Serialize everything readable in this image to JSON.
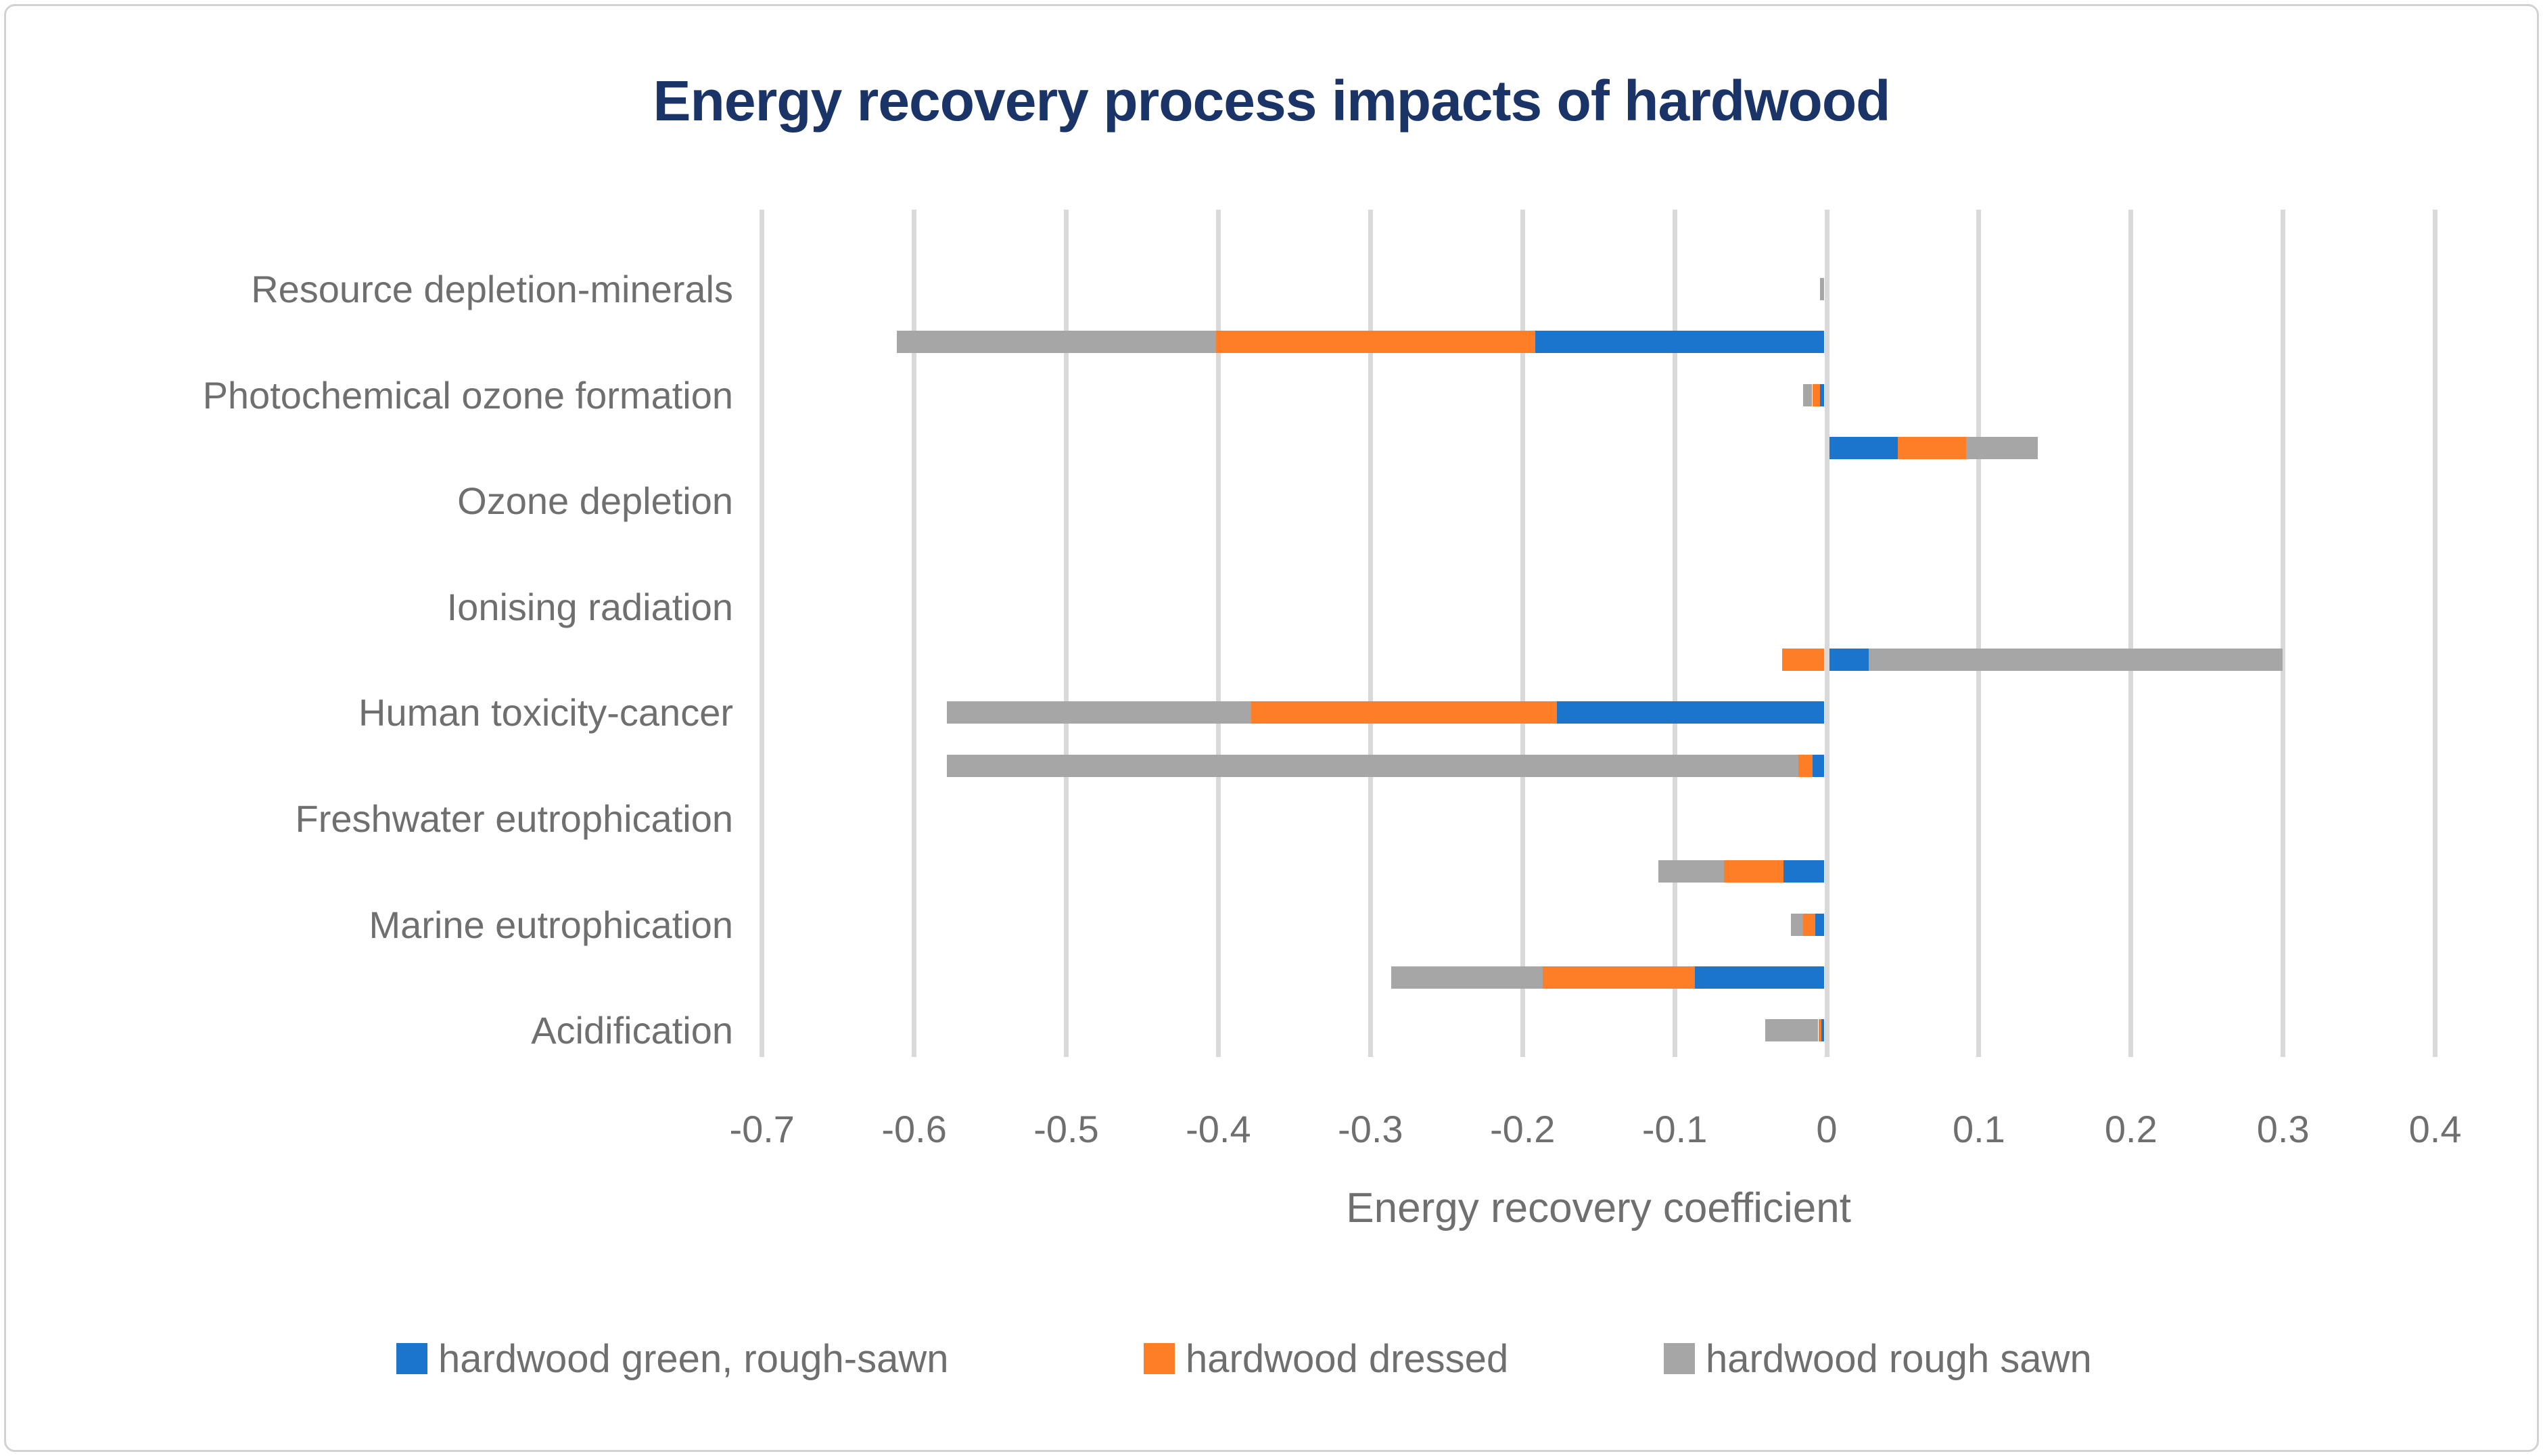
{
  "title": "Energy recovery process impacts of hardwood",
  "x_axis": {
    "label": "Energy recovery coefficient",
    "tick_labels": [
      "-0.7",
      "-0.6",
      "-0.5",
      "-0.4",
      "-0.3",
      "-0.2",
      "-0.1",
      "0",
      "0.1",
      "0.2",
      "0.3",
      "0.4"
    ],
    "tick_values": [
      -0.7,
      -0.6,
      -0.5,
      -0.4,
      -0.3,
      -0.2,
      -0.1,
      0,
      0.1,
      0.2,
      0.3,
      0.4
    ]
  },
  "colors": {
    "series_blue": "#1b75cd",
    "series_orange": "#fd7e26",
    "series_gray": "#a6a6a6",
    "gridline": "#d9d9d9",
    "title_text": "#1b3467",
    "axis_text": "#6f6f6f"
  },
  "legend": {
    "items": [
      {
        "label": "hardwood green, rough-sawn",
        "color": "#1b75cd"
      },
      {
        "label": "hardwood dressed",
        "color": "#fd7e26"
      },
      {
        "label": "hardwood rough sawn",
        "color": "#a6a6a6"
      }
    ]
  },
  "chart_data": {
    "type": "bar",
    "orientation": "horizontal",
    "stacked": true,
    "title": "Energy recovery process impacts of hardwood",
    "xlabel": "Energy recovery coefficient",
    "xlim": [
      -0.75,
      0.45
    ],
    "xticks": [
      -0.7,
      -0.6,
      -0.5,
      -0.4,
      -0.3,
      -0.2,
      -0.1,
      0,
      0.1,
      0.2,
      0.3,
      0.4
    ],
    "grid": true,
    "legend_position": "bottom",
    "note": "16 bar rows; axis labels are shown only on every second row (rows with empty label are unlabeled in the source chart)",
    "categories": [
      "",
      "Resource depletion-minerals",
      "",
      "Photochemical ozone formation",
      "",
      "Ozone depletion",
      "",
      "Ionising radiation",
      "",
      "Human toxicity-cancer",
      "",
      "Freshwater eutrophication",
      "",
      "Marine eutrophication",
      "",
      "Acidification"
    ],
    "series": [
      {
        "name": "hardwood green, rough-sawn",
        "color": "#1b75cd",
        "values": [
          0,
          0,
          -0.19,
          -0.003,
          0.045,
          0,
          0,
          0,
          0.026,
          -0.176,
          -0.008,
          0,
          -0.027,
          -0.006,
          -0.085,
          -0.002
        ]
      },
      {
        "name": "hardwood dressed",
        "color": "#fd7e26",
        "values": [
          0,
          0,
          -0.21,
          -0.005,
          0.045,
          0,
          0,
          0,
          -0.028,
          -0.201,
          -0.009,
          0,
          -0.039,
          -0.008,
          -0.1,
          -0.002
        ]
      },
      {
        "name": "hardwood rough sawn",
        "color": "#a6a6a6",
        "values": [
          0,
          -0.003,
          -0.21,
          -0.006,
          0.047,
          0,
          0,
          0,
          0.272,
          -0.2,
          -0.56,
          0,
          -0.043,
          -0.008,
          -0.1,
          -0.035
        ]
      }
    ]
  }
}
